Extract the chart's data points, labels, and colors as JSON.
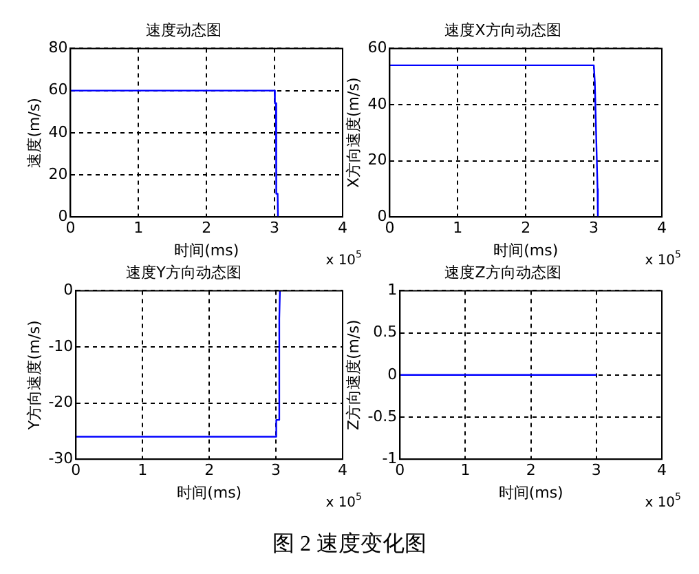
{
  "chart_data": [
    {
      "type": "line",
      "title": "速度动态图",
      "xlabel": "时间(ms)",
      "ylabel": "速度(m/s)",
      "x": [
        0,
        3,
        3.005,
        3.02,
        3.025,
        3.045,
        3.05
      ],
      "series": [
        {
          "color": "#0000ff",
          "values": [
            60,
            60,
            54,
            54,
            11,
            11,
            0
          ]
        }
      ],
      "xlim": [
        0,
        4
      ],
      "xticks": [
        0,
        1,
        2,
        3,
        4
      ],
      "ylim": [
        0,
        80
      ],
      "yticks": [
        0,
        20,
        40,
        60,
        80
      ],
      "grid": true,
      "marker": "none",
      "annotations": [
        "x 10$^{5}$"
      ]
    },
    {
      "type": "line",
      "title": "速度X方向动态图",
      "xlabel": "时间(ms)",
      "ylabel": "X方向速度(m/s)",
      "x": [
        0,
        3,
        3.005,
        3.015,
        3.02,
        3.035,
        3.04,
        3.055,
        3.06
      ],
      "series": [
        {
          "color": "#0000ff",
          "values": [
            54,
            54,
            54,
            48,
            48,
            29,
            29,
            10,
            0
          ]
        }
      ],
      "xlim": [
        0,
        4
      ],
      "xticks": [
        0,
        1,
        2,
        3,
        4
      ],
      "ylim": [
        0,
        60
      ],
      "yticks": [
        0,
        20,
        40,
        60
      ],
      "grid": true,
      "marker": "none",
      "annotations": [
        "x 10$^{5}$"
      ]
    },
    {
      "type": "line",
      "title": "速度Y方向动态图",
      "xlabel": "时间(ms)",
      "ylabel": "Y方向速度(m/s)",
      "x": [
        0,
        3,
        3.005,
        3.045,
        3.05,
        3.06
      ],
      "series": [
        {
          "color": "#0000ff",
          "values": [
            -26,
            -26,
            -23,
            -23,
            -5,
            0
          ]
        }
      ],
      "xlim": [
        0,
        4
      ],
      "xticks": [
        0,
        1,
        2,
        3,
        4
      ],
      "ylim": [
        -30,
        0
      ],
      "yticks": [
        -30,
        -20,
        -10,
        0
      ],
      "grid": true,
      "marker": "none",
      "annotations": [
        "x 10$^{5}$"
      ]
    },
    {
      "type": "line",
      "title": "速度Z方向动态图",
      "xlabel": "时间(ms)",
      "ylabel": "Z方向速度(m/s)",
      "x": [
        0,
        3
      ],
      "series": [
        {
          "color": "#0000ff",
          "values": [
            0,
            0
          ]
        }
      ],
      "xlim": [
        0,
        4
      ],
      "xticks": [
        0,
        1,
        2,
        3,
        4
      ],
      "ylim": [
        -1,
        1
      ],
      "yticks": [
        -1,
        -0.5,
        0,
        0.5,
        1
      ],
      "grid": true,
      "marker": "none",
      "annotations": [
        "x 10$^{5}$",
        "图 2  速度变化图"
      ]
    }
  ]
}
